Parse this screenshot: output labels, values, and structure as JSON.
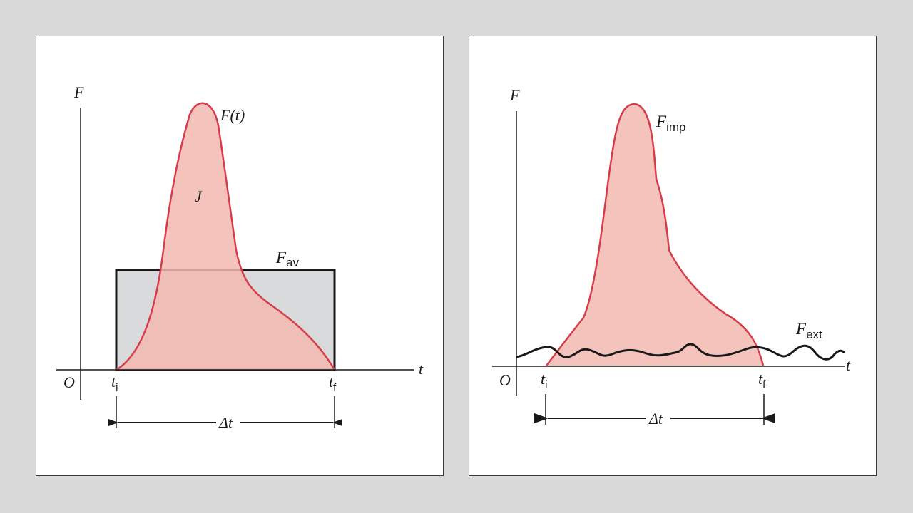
{
  "left_panel": {
    "axis_y": "F",
    "axis_x": "t",
    "origin": "O",
    "curve_label": "F(t)",
    "area_label": "J",
    "average": {
      "base": "F",
      "sub": "av"
    },
    "t_initial": {
      "base": "t",
      "sub": "i"
    },
    "t_final": {
      "base": "t",
      "sub": "f"
    },
    "interval": "Δt"
  },
  "right_panel": {
    "axis_y": "F",
    "axis_x": "t",
    "origin": "O",
    "impulsive": {
      "base": "F",
      "sub": "imp"
    },
    "external": {
      "base": "F",
      "sub": "ext"
    },
    "t_initial": {
      "base": "t",
      "sub": "i"
    },
    "t_final": {
      "base": "t",
      "sub": "f"
    },
    "interval": "Δt"
  },
  "colors": {
    "fill_pulse": "#f2b8b0",
    "stroke_pulse": "#d63c4a",
    "fill_average": "#d9dadc",
    "line": "#1a1a1a"
  }
}
